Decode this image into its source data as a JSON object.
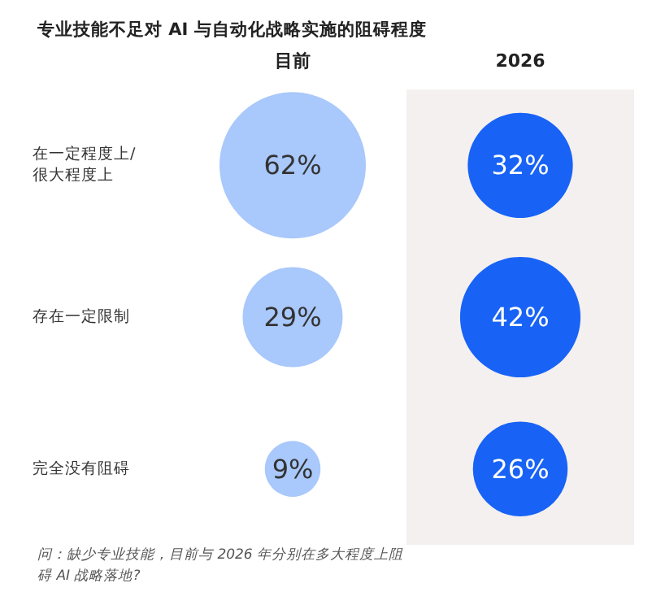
{
  "chart_data": {
    "type": "other",
    "title": "专业技能不足对 AI 与自动化战略实施的阻碍程度",
    "categories": [
      "在一定程度上/很大程度上",
      "存在一定限制",
      "完全没有阻碍"
    ],
    "series": [
      {
        "name": "目前",
        "color": "#a9c8fb",
        "values": [
          62,
          29,
          9
        ],
        "value_labels": [
          "62%",
          "29%",
          "9%"
        ]
      },
      {
        "name": "2026",
        "color": "#1863f6",
        "values": [
          32,
          42,
          26
        ],
        "value_labels": [
          "32%",
          "42%",
          "26%"
        ]
      }
    ],
    "annotations": [
      "问：缺少专业技能，目前与 2026 年分别在多大程度上阻碍 AI 战略落地?"
    ]
  }
}
